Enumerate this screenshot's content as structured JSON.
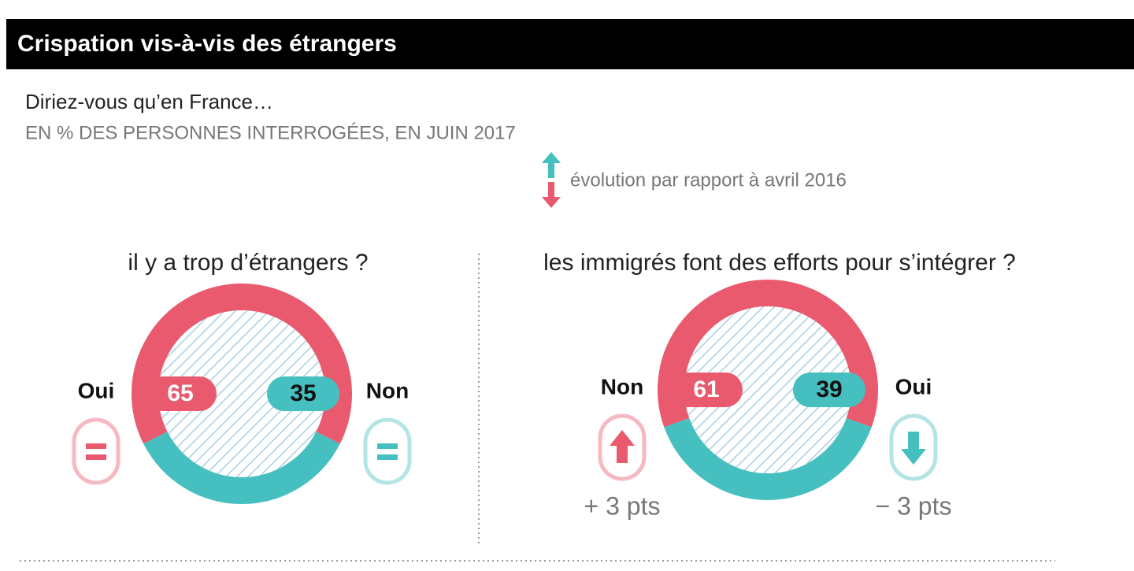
{
  "title": "Crispation vis-à-vis des étrangers",
  "subtitle": "Diriez-vous qu’en France…",
  "unit_note": "EN % DES PERSONNES INTERROGÉES, EN JUIN 2017",
  "legend_label": "évolution par rapport à avril 2016",
  "chart_data": [
    {
      "type": "donut",
      "title": "il y a trop d’étrangers ?",
      "categories": [
        "Oui",
        "Non"
      ],
      "values": [
        65,
        35
      ],
      "colors": [
        "#e95a6e",
        "#45bfc0"
      ],
      "changes": [
        0,
        0
      ]
    },
    {
      "type": "donut",
      "title": "les immigrés font des efforts pour s’intégrer ?",
      "categories": [
        "Non",
        "Oui"
      ],
      "values": [
        61,
        39
      ],
      "colors": [
        "#e95a6e",
        "#45bfc0"
      ],
      "changes": [
        {
          "value": 3,
          "label": "+ 3 pts"
        },
        {
          "value": -3,
          "label": "− 3 pts"
        }
      ]
    }
  ]
}
